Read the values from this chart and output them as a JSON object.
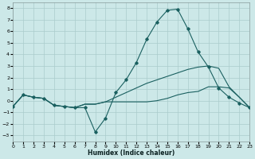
{
  "xlabel": "Humidex (Indice chaleur)",
  "bg_color": "#cce8e8",
  "grid_color": "#aacccc",
  "line_color": "#1a6060",
  "xlim": [
    0,
    23
  ],
  "ylim": [
    -3.5,
    8.5
  ],
  "xticks": [
    0,
    1,
    2,
    3,
    4,
    5,
    6,
    7,
    8,
    9,
    10,
    11,
    12,
    13,
    14,
    15,
    16,
    17,
    18,
    19,
    20,
    21,
    22,
    23
  ],
  "yticks": [
    -3,
    -2,
    -1,
    0,
    1,
    2,
    3,
    4,
    5,
    6,
    7,
    8
  ],
  "line1_x": [
    0,
    1,
    2,
    3,
    4,
    5,
    6,
    7,
    8,
    9,
    10,
    11,
    12,
    13,
    14,
    15,
    16,
    17,
    18,
    19,
    20,
    21,
    22,
    23
  ],
  "line1_y": [
    -0.5,
    0.5,
    0.3,
    0.2,
    -0.4,
    -0.5,
    -0.6,
    -0.6,
    -2.7,
    -1.5,
    0.7,
    1.8,
    3.3,
    5.3,
    6.8,
    7.8,
    7.9,
    6.2,
    4.2,
    2.9,
    1.1,
    0.3,
    -0.2,
    -0.6
  ],
  "line2_x": [
    0,
    1,
    2,
    3,
    4,
    5,
    6,
    7,
    8,
    9,
    10,
    11,
    12,
    13,
    14,
    15,
    16,
    17,
    18,
    19,
    20,
    21,
    22,
    23
  ],
  "line2_y": [
    -0.5,
    0.5,
    0.3,
    0.2,
    -0.4,
    -0.5,
    -0.6,
    -0.3,
    -0.3,
    -0.1,
    0.3,
    0.7,
    1.1,
    1.5,
    1.8,
    2.1,
    2.4,
    2.7,
    2.9,
    3.0,
    2.8,
    1.2,
    0.3,
    -0.6
  ],
  "line3_x": [
    0,
    1,
    2,
    3,
    4,
    5,
    6,
    7,
    8,
    9,
    10,
    11,
    12,
    13,
    14,
    15,
    16,
    17,
    18,
    19,
    20,
    21,
    22,
    23
  ],
  "line3_y": [
    -0.5,
    0.5,
    0.3,
    0.2,
    -0.4,
    -0.5,
    -0.6,
    -0.3,
    -0.3,
    -0.1,
    -0.1,
    -0.1,
    -0.1,
    -0.1,
    0.0,
    0.2,
    0.5,
    0.7,
    0.8,
    1.2,
    1.2,
    1.1,
    0.3,
    -0.6
  ],
  "marker_x": [
    0,
    1,
    2,
    3,
    4,
    5,
    6,
    7,
    8,
    9,
    10,
    11,
    12,
    13,
    14,
    15,
    16,
    17,
    18,
    19,
    20,
    21,
    22,
    23
  ],
  "marker_y": [
    -0.5,
    0.5,
    0.3,
    0.2,
    -0.4,
    -0.5,
    -0.6,
    -0.6,
    -2.7,
    -1.5,
    0.7,
    1.8,
    3.3,
    5.3,
    6.8,
    7.8,
    7.9,
    6.2,
    4.2,
    2.9,
    1.1,
    0.3,
    -0.2,
    -0.6
  ]
}
